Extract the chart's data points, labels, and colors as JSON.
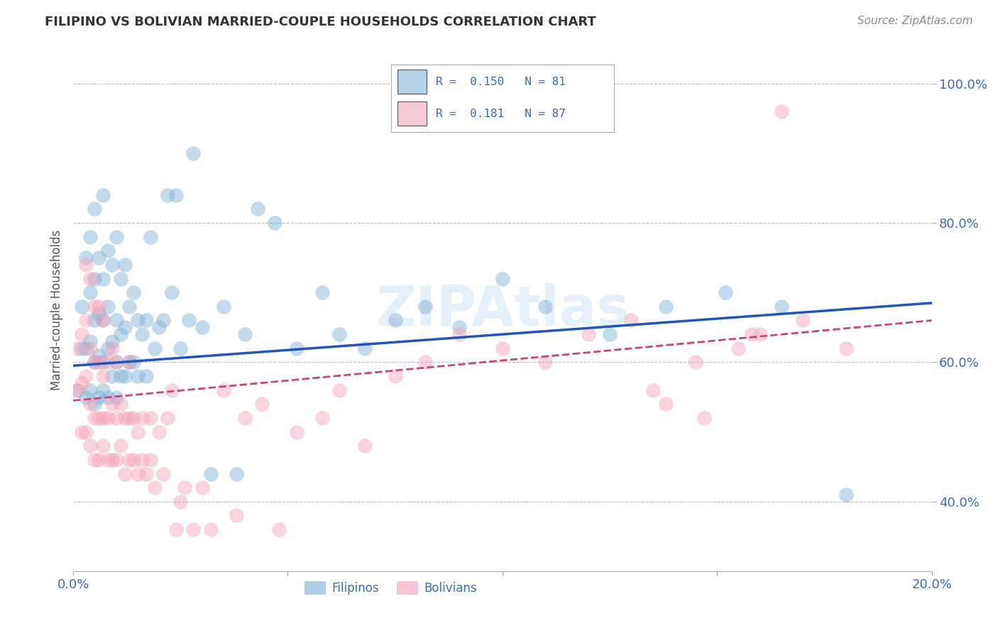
{
  "title": "FILIPINO VS BOLIVIAN MARRIED-COUPLE HOUSEHOLDS CORRELATION CHART",
  "source": "Source: ZipAtlas.com",
  "ylabel": "Married-couple Households",
  "xlim": [
    0.0,
    0.2
  ],
  "ylim": [
    0.3,
    1.05
  ],
  "xticks": [
    0.0,
    0.05,
    0.1,
    0.15,
    0.2
  ],
  "yticks": [
    0.4,
    0.6,
    0.8,
    1.0
  ],
  "xticklabels": [
    "0.0%",
    "",
    "",
    "",
    "20.0%"
  ],
  "yticklabels": [
    "40.0%",
    "60.0%",
    "80.0%",
    "100.0%"
  ],
  "filipino_R": 0.15,
  "filipino_N": 81,
  "bolivian_R": 0.181,
  "bolivian_N": 87,
  "filipino_color": "#7aadd4",
  "bolivian_color": "#f4a0b5",
  "trendline_filipino_color": "#2255bb",
  "trendline_bolivian_color": "#cc4477",
  "watermark": "ZIPAtlas",
  "background_color": "#ffffff",
  "grid_color": "#bbbbbb",
  "legend_label_filipino": "Filipinos",
  "legend_label_bolivian": "Bolivians",
  "filipino_trend_x0": 0.0,
  "filipino_trend_y0": 0.595,
  "filipino_trend_x1": 0.2,
  "filipino_trend_y1": 0.685,
  "bolivian_trend_x0": 0.0,
  "bolivian_trend_y0": 0.545,
  "bolivian_trend_x1": 0.2,
  "bolivian_trend_y1": 0.66,
  "filipino_scatter_x": [
    0.001,
    0.002,
    0.002,
    0.003,
    0.003,
    0.003,
    0.004,
    0.004,
    0.004,
    0.004,
    0.005,
    0.005,
    0.005,
    0.005,
    0.005,
    0.006,
    0.006,
    0.006,
    0.006,
    0.007,
    0.007,
    0.007,
    0.007,
    0.007,
    0.008,
    0.008,
    0.008,
    0.008,
    0.009,
    0.009,
    0.009,
    0.01,
    0.01,
    0.01,
    0.01,
    0.011,
    0.011,
    0.011,
    0.012,
    0.012,
    0.012,
    0.013,
    0.013,
    0.014,
    0.014,
    0.015,
    0.015,
    0.016,
    0.017,
    0.017,
    0.018,
    0.019,
    0.02,
    0.021,
    0.022,
    0.023,
    0.024,
    0.025,
    0.027,
    0.028,
    0.03,
    0.032,
    0.035,
    0.038,
    0.04,
    0.043,
    0.047,
    0.052,
    0.058,
    0.062,
    0.068,
    0.075,
    0.082,
    0.09,
    0.1,
    0.11,
    0.125,
    0.138,
    0.152,
    0.165,
    0.18
  ],
  "filipino_scatter_y": [
    0.56,
    0.62,
    0.68,
    0.55,
    0.62,
    0.75,
    0.56,
    0.63,
    0.7,
    0.78,
    0.54,
    0.6,
    0.66,
    0.72,
    0.82,
    0.55,
    0.61,
    0.67,
    0.75,
    0.56,
    0.6,
    0.66,
    0.72,
    0.84,
    0.55,
    0.62,
    0.68,
    0.76,
    0.58,
    0.63,
    0.74,
    0.55,
    0.6,
    0.66,
    0.78,
    0.58,
    0.64,
    0.72,
    0.58,
    0.65,
    0.74,
    0.6,
    0.68,
    0.6,
    0.7,
    0.58,
    0.66,
    0.64,
    0.58,
    0.66,
    0.78,
    0.62,
    0.65,
    0.66,
    0.84,
    0.7,
    0.84,
    0.62,
    0.66,
    0.9,
    0.65,
    0.44,
    0.68,
    0.44,
    0.64,
    0.82,
    0.8,
    0.62,
    0.7,
    0.64,
    0.62,
    0.66,
    0.68,
    0.65,
    0.72,
    0.68,
    0.64,
    0.68,
    0.7,
    0.68,
    0.41
  ],
  "bolivian_scatter_x": [
    0.001,
    0.001,
    0.002,
    0.002,
    0.002,
    0.003,
    0.003,
    0.003,
    0.003,
    0.004,
    0.004,
    0.004,
    0.004,
    0.005,
    0.005,
    0.005,
    0.005,
    0.006,
    0.006,
    0.006,
    0.006,
    0.007,
    0.007,
    0.007,
    0.007,
    0.008,
    0.008,
    0.008,
    0.009,
    0.009,
    0.009,
    0.01,
    0.01,
    0.01,
    0.011,
    0.011,
    0.012,
    0.012,
    0.013,
    0.013,
    0.013,
    0.014,
    0.014,
    0.015,
    0.015,
    0.016,
    0.016,
    0.017,
    0.018,
    0.018,
    0.019,
    0.02,
    0.021,
    0.022,
    0.023,
    0.024,
    0.025,
    0.026,
    0.028,
    0.03,
    0.032,
    0.035,
    0.038,
    0.04,
    0.044,
    0.048,
    0.052,
    0.058,
    0.062,
    0.068,
    0.075,
    0.082,
    0.09,
    0.1,
    0.11,
    0.12,
    0.13,
    0.145,
    0.158,
    0.17,
    0.18,
    0.135,
    0.147,
    0.155,
    0.138,
    0.16,
    0.165
  ],
  "bolivian_scatter_y": [
    0.56,
    0.62,
    0.5,
    0.57,
    0.64,
    0.5,
    0.58,
    0.66,
    0.74,
    0.48,
    0.54,
    0.62,
    0.72,
    0.46,
    0.52,
    0.6,
    0.68,
    0.46,
    0.52,
    0.6,
    0.68,
    0.48,
    0.52,
    0.58,
    0.66,
    0.46,
    0.52,
    0.6,
    0.46,
    0.54,
    0.62,
    0.46,
    0.52,
    0.6,
    0.48,
    0.54,
    0.44,
    0.52,
    0.46,
    0.52,
    0.6,
    0.46,
    0.52,
    0.44,
    0.5,
    0.46,
    0.52,
    0.44,
    0.46,
    0.52,
    0.42,
    0.5,
    0.44,
    0.52,
    0.56,
    0.36,
    0.4,
    0.42,
    0.36,
    0.42,
    0.36,
    0.56,
    0.38,
    0.52,
    0.54,
    0.36,
    0.5,
    0.52,
    0.56,
    0.48,
    0.58,
    0.6,
    0.64,
    0.62,
    0.6,
    0.64,
    0.66,
    0.6,
    0.64,
    0.66,
    0.62,
    0.56,
    0.52,
    0.62,
    0.54,
    0.64,
    0.96
  ]
}
